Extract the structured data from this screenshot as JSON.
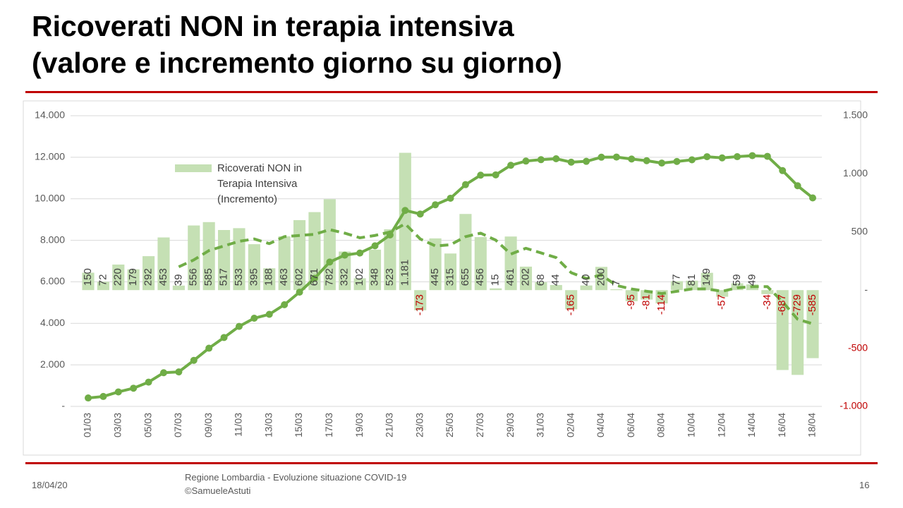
{
  "title_lines": [
    "Ricoverati NON in terapia intensiva",
    "(valore e incremento giorno su giorno)"
  ],
  "footer": {
    "date": "18/04/20",
    "source_lines": [
      "Regione Lombardia - Evoluzione situazione COVID-19",
      "©SamueleAstuti"
    ],
    "page": "16"
  },
  "chart_data": {
    "type": "bar_line",
    "categories": [
      "01/03",
      null,
      "03/03",
      null,
      "05/03",
      null,
      "07/03",
      null,
      "09/03",
      null,
      "11/03",
      null,
      "13/03",
      null,
      "15/03",
      null,
      "17/03",
      null,
      "19/03",
      null,
      "21/03",
      null,
      "23/03",
      null,
      "25/03",
      null,
      "27/03",
      null,
      "29/03",
      null,
      "31/03",
      null,
      "02/04",
      null,
      "04/04",
      null,
      "06/04",
      null,
      "08/04",
      null,
      "10/04",
      null,
      "12/04",
      null,
      "14/04",
      null,
      "16/04",
      null,
      "18/04"
    ],
    "series": [
      {
        "name": "Ricoverati NON in Terapia Intensiva (Incremento)",
        "type": "bar",
        "axis": "y2",
        "color": "#c5e0b4",
        "values": [
          150,
          72,
          220,
          179,
          292,
          453,
          39,
          556,
          585,
          517,
          533,
          395,
          188,
          463,
          602,
          671,
          782,
          332,
          102,
          348,
          523,
          1181,
          -173,
          445,
          315,
          655,
          456,
          15,
          461,
          202,
          68,
          44,
          -165,
          40,
          200,
          7,
          -95,
          -81,
          -114,
          77,
          81,
          149,
          -57,
          59,
          49,
          -34,
          -687,
          -729,
          -585
        ],
        "value_labels": [
          "150",
          "72",
          "220",
          "179",
          "292",
          "453",
          "39",
          "556",
          "585",
          "517",
          "533",
          "395",
          "188",
          "463",
          "602",
          "671",
          "782",
          "332",
          "102",
          "348",
          "523",
          "1.181",
          "-173",
          "445",
          "315",
          "655",
          "456",
          "15",
          "461",
          "202",
          "68",
          "44",
          "-165",
          "40",
          "200",
          "7",
          "-95",
          "-81",
          "-114",
          "77",
          "81",
          "149",
          "-57",
          "59",
          "49",
          "-34",
          "-687",
          "-729",
          "-585"
        ]
      },
      {
        "type": "line",
        "axis": "y",
        "color": "#70ad47",
        "values": [
          406,
          478,
          698,
          877,
          1169,
          1622,
          1661,
          2217,
          2802,
          3319,
          3852,
          4247,
          4435,
          4898,
          5500,
          6171,
          6953,
          7285,
          7387,
          7735,
          8258,
          9439,
          9266,
          9711,
          10026,
          10681,
          11137,
          11152,
          11613,
          11815,
          11883,
          11927,
          11762,
          11802,
          12002,
          12009,
          11914,
          11833,
          11719,
          11796,
          11877,
          12026,
          11969,
          12028,
          12077,
          12043,
          11356,
          10627,
          10042
        ]
      },
      {
        "type": "dashed_line",
        "axis": "y2",
        "color": "#70ad47",
        "values": [
          null,
          null,
          null,
          null,
          null,
          null,
          200,
          260,
          340,
          380,
          420,
          440,
          400,
          460,
          470,
          480,
          520,
          490,
          450,
          470,
          500,
          570,
          440,
          380,
          390,
          460,
          490,
          430,
          310,
          360,
          320,
          280,
          150,
          100,
          130,
          40,
          10,
          -10,
          -30,
          -10,
          10,
          10,
          -10,
          20,
          30,
          30,
          -100,
          -250,
          -290
        ]
      }
    ],
    "ylim": [
      0,
      14000
    ],
    "yticks": [
      {
        "value": 0,
        "label": "-"
      },
      {
        "value": 2000,
        "label": "2.000"
      },
      {
        "value": 4000,
        "label": "4.000"
      },
      {
        "value": 6000,
        "label": "6.000"
      },
      {
        "value": 8000,
        "label": "8.000"
      },
      {
        "value": 10000,
        "label": "10.000"
      },
      {
        "value": 12000,
        "label": "12.000"
      },
      {
        "value": 14000,
        "label": "14.000"
      }
    ],
    "y2lim": [
      -1000,
      1500
    ],
    "y2ticks": [
      {
        "value": -1000,
        "label": "-1.000"
      },
      -500,
      {
        "value": 0,
        "label": "-"
      },
      500,
      {
        "value": 1000,
        "label": "1.000"
      },
      {
        "value": 1500,
        "label": "1.500"
      }
    ],
    "grid": true,
    "negative_color": "#c00000"
  }
}
